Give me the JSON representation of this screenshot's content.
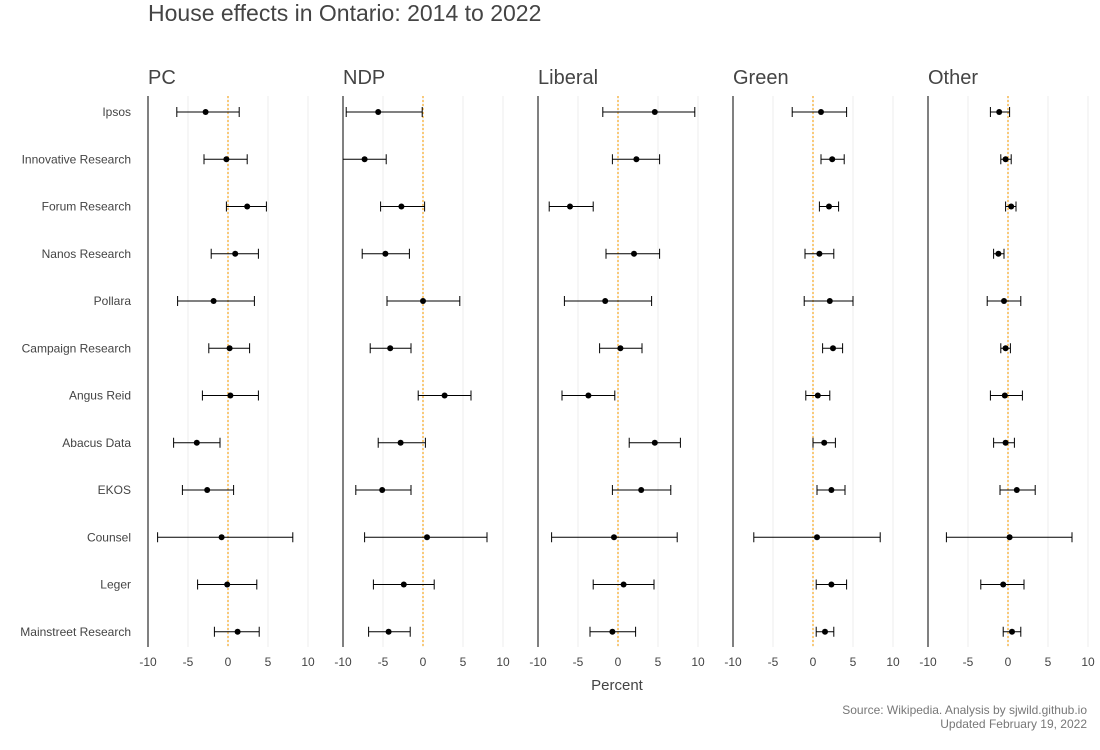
{
  "chart_data": {
    "type": "scatter",
    "title": "House effects in Ontario: 2014 to 2022",
    "xlabel": "Percent",
    "xlim": [
      -10,
      10
    ],
    "xticks": [
      "-10",
      "-5",
      "0",
      "5",
      "10"
    ],
    "reference_line_x": 0,
    "grid": true,
    "categories": [
      "Ipsos",
      "Innovative Research",
      "Forum Research",
      "Nanos Research",
      "Pollara",
      "Campaign Research",
      "Angus Reid",
      "Abacus Data",
      "EKOS",
      "Counsel",
      "Leger",
      "Mainstreet Research"
    ],
    "panels": [
      {
        "name": "PC",
        "points": [
          {
            "value": -2.8,
            "low": -6.4,
            "high": 1.4
          },
          {
            "value": -0.2,
            "low": -3.0,
            "high": 2.4
          },
          {
            "value": 2.4,
            "low": -0.2,
            "high": 4.8
          },
          {
            "value": 0.9,
            "low": -2.1,
            "high": 3.8
          },
          {
            "value": -1.8,
            "low": -6.3,
            "high": 3.3
          },
          {
            "value": 0.2,
            "low": -2.4,
            "high": 2.7
          },
          {
            "value": 0.3,
            "low": -3.2,
            "high": 3.8
          },
          {
            "value": -3.9,
            "low": -6.8,
            "high": -1.0
          },
          {
            "value": -2.6,
            "low": -5.7,
            "high": 0.7
          },
          {
            "value": -0.8,
            "low": -8.8,
            "high": 8.1
          },
          {
            "value": -0.1,
            "low": -3.8,
            "high": 3.6
          },
          {
            "value": 1.2,
            "low": -1.7,
            "high": 3.9
          }
        ]
      },
      {
        "name": "NDP",
        "points": [
          {
            "value": -5.6,
            "low": -9.6,
            "high": -0.1
          },
          {
            "value": -7.3,
            "low": -10.0,
            "high": -4.6
          },
          {
            "value": -2.7,
            "low": -5.3,
            "high": 0.2
          },
          {
            "value": -4.7,
            "low": -7.6,
            "high": -1.7
          },
          {
            "value": 0.0,
            "low": -4.5,
            "high": 4.6
          },
          {
            "value": -4.1,
            "low": -6.6,
            "high": -1.5
          },
          {
            "value": 2.7,
            "low": -0.6,
            "high": 6.0
          },
          {
            "value": -2.8,
            "low": -5.6,
            "high": 0.3
          },
          {
            "value": -5.1,
            "low": -8.4,
            "high": -1.5
          },
          {
            "value": 0.5,
            "low": -7.3,
            "high": 8.0
          },
          {
            "value": -2.4,
            "low": -6.2,
            "high": 1.4
          },
          {
            "value": -4.3,
            "low": -6.8,
            "high": -1.6
          }
        ]
      },
      {
        "name": "Liberal",
        "points": [
          {
            "value": 4.6,
            "low": -1.9,
            "high": 9.6
          },
          {
            "value": 2.3,
            "low": -0.7,
            "high": 5.2
          },
          {
            "value": -6.0,
            "low": -8.6,
            "high": -3.1
          },
          {
            "value": 2.0,
            "low": -1.5,
            "high": 5.2
          },
          {
            "value": -1.6,
            "low": -6.7,
            "high": 4.2
          },
          {
            "value": 0.3,
            "low": -2.3,
            "high": 3.0
          },
          {
            "value": -3.7,
            "low": -7.0,
            "high": -0.4
          },
          {
            "value": 4.6,
            "low": 1.4,
            "high": 7.8
          },
          {
            "value": 2.9,
            "low": -0.7,
            "high": 6.6
          },
          {
            "value": -0.5,
            "low": -8.3,
            "high": 7.4
          },
          {
            "value": 0.7,
            "low": -3.1,
            "high": 4.5
          },
          {
            "value": -0.7,
            "low": -3.5,
            "high": 2.2
          }
        ]
      },
      {
        "name": "Green",
        "points": [
          {
            "value": 1.0,
            "low": -2.6,
            "high": 4.2
          },
          {
            "value": 2.4,
            "low": 1.0,
            "high": 3.9
          },
          {
            "value": 2.0,
            "low": 0.8,
            "high": 3.2
          },
          {
            "value": 0.8,
            "low": -1.0,
            "high": 2.6
          },
          {
            "value": 2.1,
            "low": -1.1,
            "high": 5.0
          },
          {
            "value": 2.5,
            "low": 1.2,
            "high": 3.7
          },
          {
            "value": 0.6,
            "low": -0.9,
            "high": 2.1
          },
          {
            "value": 1.4,
            "low": 0.0,
            "high": 2.8
          },
          {
            "value": 2.3,
            "low": 0.5,
            "high": 4.0
          },
          {
            "value": 0.5,
            "low": -7.4,
            "high": 8.4
          },
          {
            "value": 2.3,
            "low": 0.4,
            "high": 4.2
          },
          {
            "value": 1.5,
            "low": 0.4,
            "high": 2.6
          }
        ]
      },
      {
        "name": "Other",
        "points": [
          {
            "value": -1.1,
            "low": -2.2,
            "high": 0.2
          },
          {
            "value": -0.3,
            "low": -0.9,
            "high": 0.4
          },
          {
            "value": 0.4,
            "low": -0.3,
            "high": 1.0
          },
          {
            "value": -1.2,
            "low": -1.8,
            "high": -0.5
          },
          {
            "value": -0.5,
            "low": -2.6,
            "high": 1.6
          },
          {
            "value": -0.3,
            "low": -0.9,
            "high": 0.3
          },
          {
            "value": -0.4,
            "low": -2.2,
            "high": 1.8
          },
          {
            "value": -0.3,
            "low": -1.8,
            "high": 0.8
          },
          {
            "value": 1.1,
            "low": -1.0,
            "high": 3.4
          },
          {
            "value": 0.2,
            "low": -7.7,
            "high": 8.0
          },
          {
            "value": -0.6,
            "low": -3.4,
            "high": 2.0
          },
          {
            "value": 0.5,
            "low": -0.6,
            "high": 1.6
          }
        ]
      }
    ],
    "colors": {
      "point": "#000000",
      "error_bar": "#000000",
      "reference_line": "#f5a623",
      "grid": "#ececec",
      "axis": "#000000",
      "text": "#444444"
    }
  },
  "source": {
    "line1": "Source: Wikipedia. Analysis by sjwild.github.io",
    "line2": "Updated February 19, 2022"
  }
}
